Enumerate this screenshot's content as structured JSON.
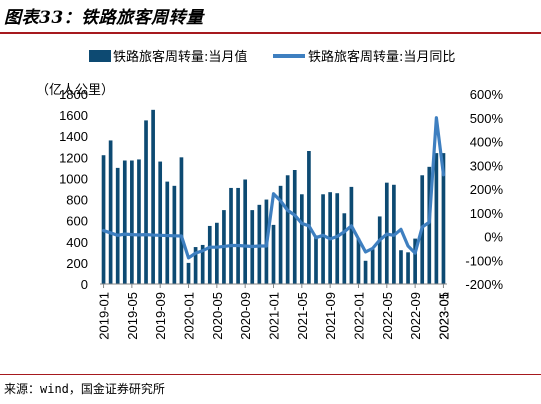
{
  "title": "图表33：铁路旅客周转量",
  "source": "来源：wind，国金证券研究所",
  "chart_data": {
    "type": "bar+line",
    "series": [
      {
        "name": "铁路旅客周转量:当月值",
        "type": "bar",
        "axis": "left",
        "color": "#0d4a72",
        "values": [
          1220,
          1360,
          1100,
          1170,
          1170,
          1180,
          1550,
          1650,
          1160,
          970,
          930,
          1200,
          200,
          350,
          370,
          550,
          580,
          700,
          910,
          910,
          990,
          700,
          750,
          800,
          560,
          930,
          1030,
          1080,
          850,
          1260,
          460,
          850,
          870,
          860,
          670,
          920,
          430,
          220,
          330,
          640,
          960,
          940,
          320,
          300,
          430,
          1030,
          1110,
          1240,
          1240
        ]
      },
      {
        "name": "铁路旅客周转量:当月同比",
        "type": "line",
        "axis": "right",
        "color": "#3e7fc0",
        "values": [
          0.25,
          0.15,
          0.05,
          0.1,
          0.08,
          0.07,
          0.08,
          0.06,
          0.05,
          0.04,
          0.03,
          0.02,
          -0.9,
          -0.7,
          -0.6,
          -0.45,
          -0.45,
          -0.42,
          -0.38,
          -0.38,
          -0.4,
          -0.42,
          -0.4,
          -0.4,
          1.8,
          1.5,
          1.1,
          0.9,
          0.55,
          0.45,
          -0.05,
          0.05,
          -0.1,
          0.0,
          0.2,
          0.45,
          -0.1,
          -0.65,
          -0.5,
          -0.15,
          0.1,
          0.05,
          0.3,
          -0.4,
          -0.7,
          0.4,
          0.6,
          5.0,
          2.6
        ]
      }
    ],
    "tick_labels": [
      "2019-01",
      "2019-05",
      "2019-09",
      "2020-01",
      "2020-05",
      "2020-09",
      "2021-01",
      "2021-05",
      "2021-09",
      "2022-01",
      "2022-05",
      "2022-09",
      "2023-01",
      "2023-05"
    ],
    "tick_index": [
      0,
      4,
      8,
      12,
      16,
      20,
      24,
      28,
      32,
      36,
      40,
      44,
      48,
      52
    ],
    "y_left": {
      "label": "（亿人公里）",
      "min": 0,
      "max": 1800,
      "step": 200,
      "ticks": [
        "0",
        "200",
        "400",
        "600",
        "800",
        "1000",
        "1200",
        "1400",
        "1600",
        "1800"
      ]
    },
    "y_right": {
      "min": -2,
      "max": 6,
      "step": 1,
      "ticks": [
        "-200%",
        "-100%",
        "0%",
        "100%",
        "200%",
        "300%",
        "400%",
        "500%",
        "600%"
      ]
    },
    "legend_position": "top"
  }
}
